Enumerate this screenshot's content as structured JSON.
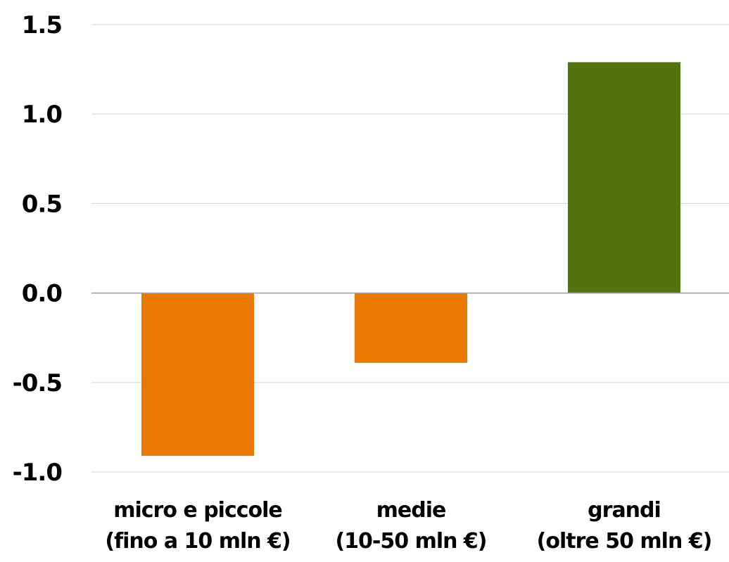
{
  "chart_data": {
    "type": "bar",
    "title": "",
    "xlabel": "",
    "ylabel": "",
    "categories": [
      [
        "micro e piccole",
        "(fino a 10 mln €)"
      ],
      [
        "medie",
        "(10-50 mln €)"
      ],
      [
        "grandi",
        "(oltre 50 mln €)"
      ]
    ],
    "values": [
      -0.91,
      -0.39,
      1.29
    ],
    "bar_colors": [
      "#e87800",
      "#e87800",
      "#53730f"
    ],
    "ylim": [
      -1.0,
      1.5
    ],
    "yticks": [
      1.5,
      1.0,
      0.5,
      0.0,
      -0.5,
      -1.0
    ],
    "ytick_labels": [
      "1.5",
      "1.0",
      "0.5",
      "0.0",
      "-0.5",
      "-1.0"
    ],
    "grid": true,
    "legend": "none"
  }
}
